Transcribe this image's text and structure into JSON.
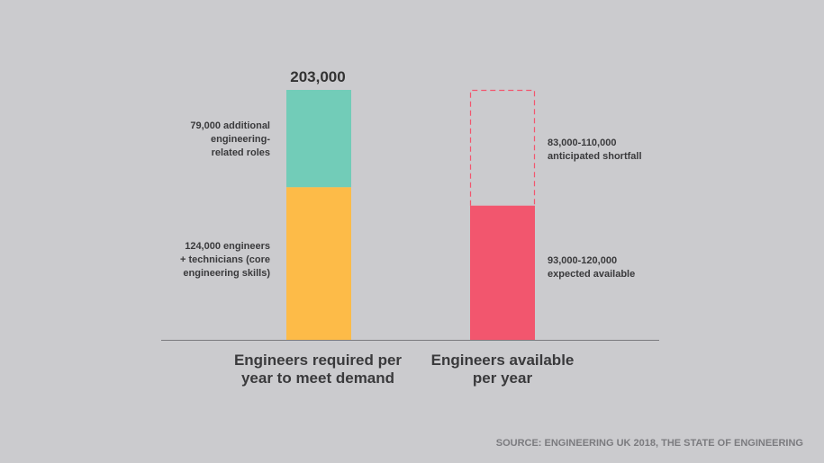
{
  "chart_data": {
    "type": "bar",
    "stacked": true,
    "categories": [
      "Engineers required per\nyear to meet demand",
      "Engineers available\nper year"
    ],
    "total_label": "203,000",
    "required": {
      "segments": [
        {
          "label": "124,000 engineers\n+ technicians (core\nengineering skills)",
          "value": 124000,
          "color": "#fdbb48"
        },
        {
          "label": "79,000 additional\nengineering-\nrelated roles",
          "value": 79000,
          "color": "#72ccb8"
        }
      ]
    },
    "available": {
      "value": 109000,
      "label": "93,000-120,000\nexpected available",
      "color": "#f2566e",
      "shortfall_label": "83,000-110,000\nanticipated shortfall",
      "shortfall_color": "#f2566e"
    },
    "ylim": [
      0,
      203000
    ]
  },
  "source": "SOURCE: ENGINEERING UK 2018, THE STATE OF ENGINEERING"
}
